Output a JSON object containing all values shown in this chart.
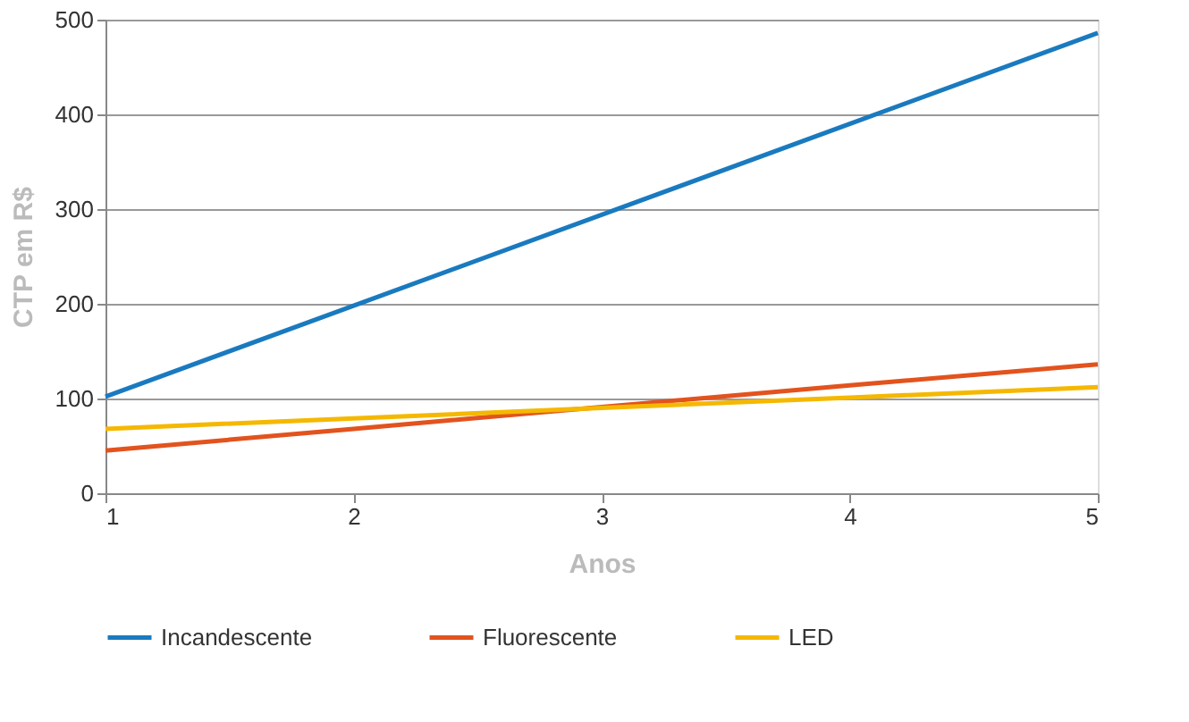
{
  "chart_data": {
    "type": "line",
    "xlabel": "Anos",
    "ylabel": "CTP em R$",
    "x": [
      1,
      2,
      3,
      4,
      5
    ],
    "series": [
      {
        "name": "Incandescente",
        "color": "#1a7abf",
        "values": [
          102,
          198,
          294,
          390,
          486
        ]
      },
      {
        "name": "Fluorescente",
        "color": "#e2531e",
        "values": [
          45,
          68,
          91,
          114,
          136
        ]
      },
      {
        "name": "LED",
        "color": "#f5b800",
        "values": [
          68,
          79,
          90,
          101,
          112
        ]
      }
    ],
    "xlim": [
      1,
      5
    ],
    "xticks": [
      1,
      2,
      3,
      4,
      5
    ],
    "ylim": [
      0,
      500
    ],
    "yticks": [
      0,
      100,
      200,
      300,
      400,
      500
    ],
    "grid": "y",
    "legend": "bottom",
    "marker": "none",
    "line_style": "solid"
  }
}
